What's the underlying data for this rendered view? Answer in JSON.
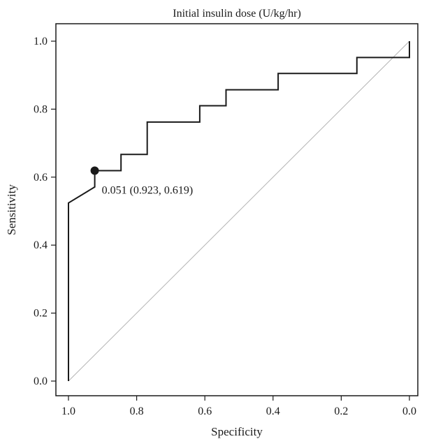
{
  "chart_data": {
    "type": "line",
    "title": "Initial insulin dose (U/kg/hr)",
    "xlabel": "Specificity",
    "ylabel": "Sensitivity",
    "x_reversed": true,
    "xlim": [
      1.0,
      0.0
    ],
    "ylim": [
      0.0,
      1.0
    ],
    "x_ticks": [
      "1.0",
      "0.8",
      "0.6",
      "0.4",
      "0.2",
      "0.0"
    ],
    "x_tick_values": [
      1.0,
      0.8,
      0.6,
      0.4,
      0.2,
      0.0
    ],
    "y_ticks": [
      "0.0",
      "0.2",
      "0.4",
      "0.6",
      "0.8",
      "1.0"
    ],
    "y_tick_values": [
      0.0,
      0.2,
      0.4,
      0.6,
      0.8,
      1.0
    ],
    "grid": false,
    "colors": {
      "roc": "#1a1a1a",
      "reference": "#b3b3b3"
    },
    "series": [
      {
        "points": [
          [
            1.0,
            0.0
          ],
          [
            1.0,
            0.524
          ],
          [
            0.923,
            0.571
          ],
          [
            0.923,
            0.619
          ],
          [
            0.846,
            0.619
          ],
          [
            0.846,
            0.667
          ],
          [
            0.769,
            0.667
          ],
          [
            0.769,
            0.762
          ],
          [
            0.615,
            0.762
          ],
          [
            0.615,
            0.81
          ],
          [
            0.538,
            0.81
          ],
          [
            0.538,
            0.857
          ],
          [
            0.385,
            0.857
          ],
          [
            0.385,
            0.905
          ],
          [
            0.154,
            0.905
          ],
          [
            0.154,
            0.952
          ],
          [
            0.0,
            0.952
          ],
          [
            0.0,
            1.0
          ]
        ]
      }
    ],
    "reference_line": [
      [
        1.0,
        0.0
      ],
      [
        0.0,
        1.0
      ]
    ],
    "annotations": [
      {
        "x": 0.923,
        "y": 0.619,
        "text": "0.051 (0.923, 0.619)"
      }
    ]
  }
}
